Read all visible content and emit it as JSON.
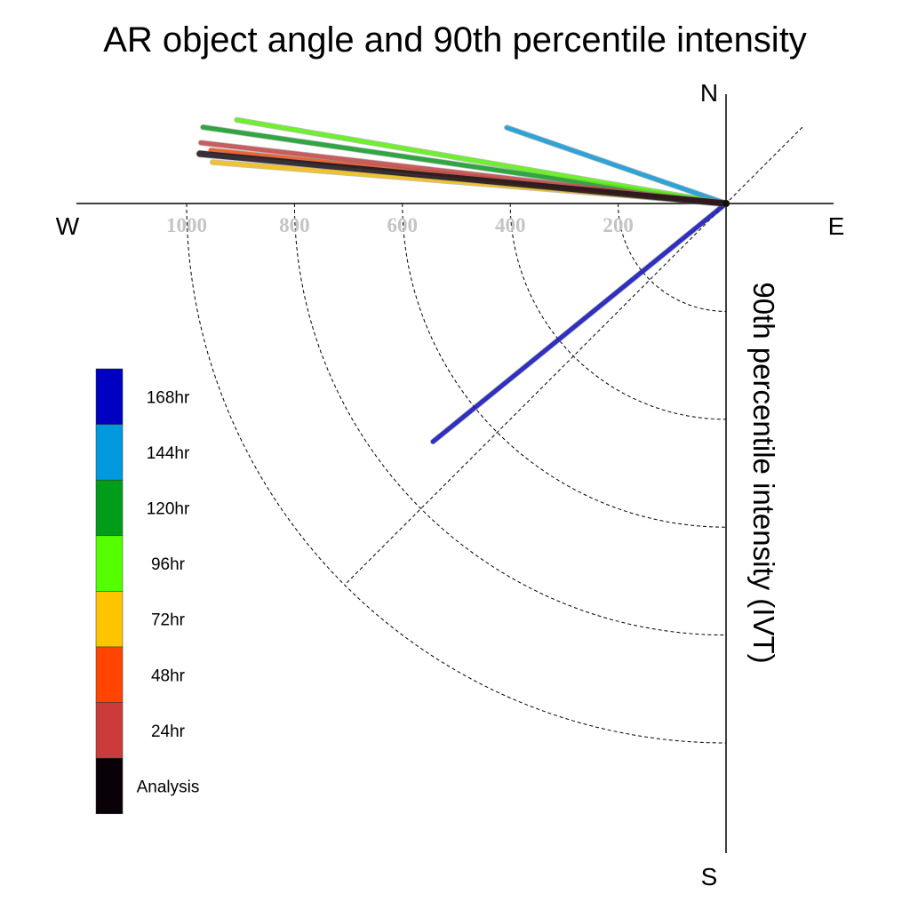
{
  "chart_data": {
    "type": "polar-vector",
    "title": "AR object angle and 90th percentile intensity",
    "radial_label": "90th percentile intensity (IVT)",
    "compass": {
      "N": "N",
      "E": "E",
      "S": "S",
      "W": "W"
    },
    "radial_ticks": [
      200,
      400,
      600,
      800,
      1000
    ],
    "radial_tick_labels": [
      "200",
      "400",
      "600",
      "800",
      "1000"
    ],
    "radial_max": 1000,
    "angle_convention": "degrees counter-clockwise from East",
    "series": [
      {
        "name": "168hr",
        "color": "#0000c0",
        "angle": 219.1,
        "intensity": 700
      },
      {
        "name": "144hr",
        "color": "#0099dd",
        "angle": 160.9,
        "intensity": 430
      },
      {
        "name": "120hr",
        "color": "#009d1a",
        "angle": 171.7,
        "intensity": 980
      },
      {
        "name": "96hr",
        "color": "#55ff00",
        "angle": 170.3,
        "intensity": 920
      },
      {
        "name": "72hr",
        "color": "#ffc400",
        "angle": 175.4,
        "intensity": 955
      },
      {
        "name": "48hr",
        "color": "#ff4500",
        "angle": 174.1,
        "intensity": 960
      },
      {
        "name": "24hr",
        "color": "#cc3b3b",
        "angle": 173.4,
        "intensity": 980
      },
      {
        "name": "Analysis",
        "color": "#0a0008",
        "angle": 174.6,
        "intensity": 980
      }
    ]
  }
}
